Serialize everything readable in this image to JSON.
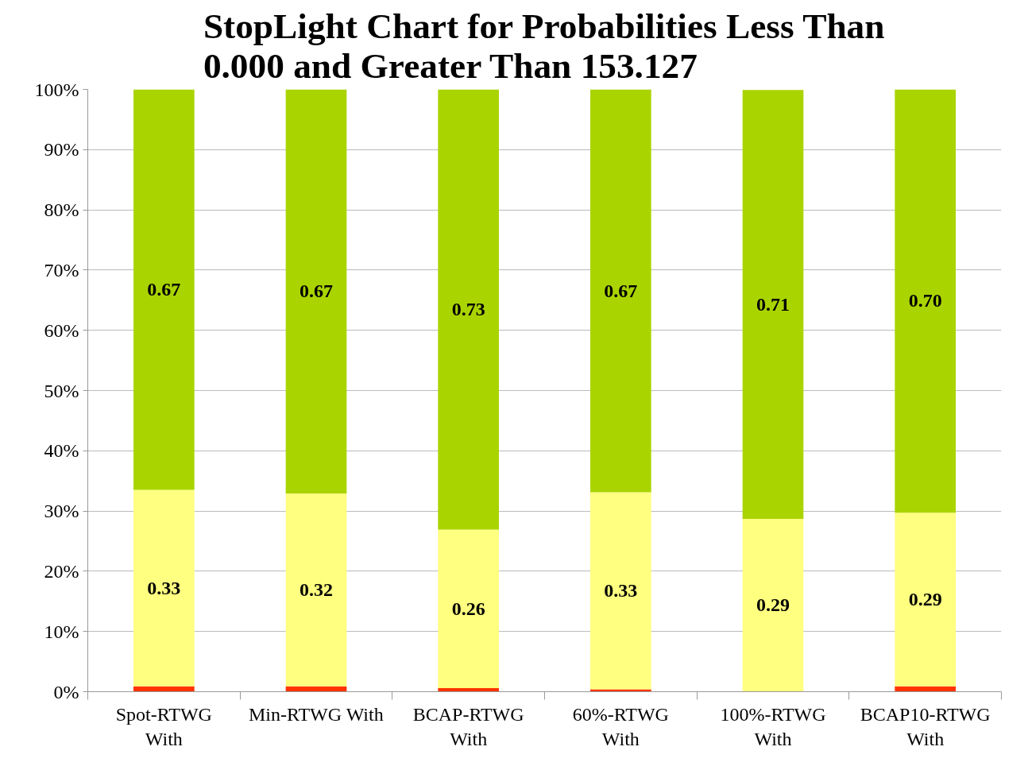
{
  "chart_data": {
    "type": "bar",
    "stacked": true,
    "title": "StopLight Chart for Probabilities Less Than\n0.000 and Greater Than 153.127",
    "categories": [
      "Spot-RTWG\nWith",
      "Min-RTWG With",
      "BCAP-RTWG\nWith",
      "60%-RTWG\nWith",
      "100%-RTWG\nWith",
      "BCAP10-RTWG\nWith"
    ],
    "series": [
      {
        "color": "#ff3300",
        "values": [
          0.009,
          0.009,
          0.006,
          0.004,
          null,
          0.009
        ],
        "value_labels": [
          null,
          null,
          null,
          null,
          null,
          null
        ]
      },
      {
        "color": "#ffff80",
        "values": [
          0.326,
          0.32,
          0.263,
          0.327,
          0.287,
          0.288
        ],
        "value_labels": [
          "0.33",
          "0.32",
          "0.26",
          "0.33",
          "0.29",
          "0.29"
        ]
      },
      {
        "color": "#aad400",
        "values": [
          0.665,
          0.671,
          0.731,
          0.669,
          0.712,
          0.703
        ],
        "value_labels": [
          "0.67",
          "0.67",
          "0.73",
          "0.67",
          "0.71",
          "0.70"
        ]
      }
    ],
    "ylim": [
      0,
      1
    ],
    "yticks": [
      {
        "value": 0,
        "label": "0%"
      },
      {
        "value": 0.1,
        "label": "10%"
      },
      {
        "value": 0.2,
        "label": "20%"
      },
      {
        "value": 0.3,
        "label": "30%"
      },
      {
        "value": 0.4,
        "label": "40%"
      },
      {
        "value": 0.5,
        "label": "50%"
      },
      {
        "value": 0.6,
        "label": "60%"
      },
      {
        "value": 0.7,
        "label": "70%"
      },
      {
        "value": 0.8,
        "label": "80%"
      },
      {
        "value": 0.9,
        "label": "90%"
      },
      {
        "value": 1.0,
        "label": "100%"
      }
    ],
    "grid": "y"
  }
}
